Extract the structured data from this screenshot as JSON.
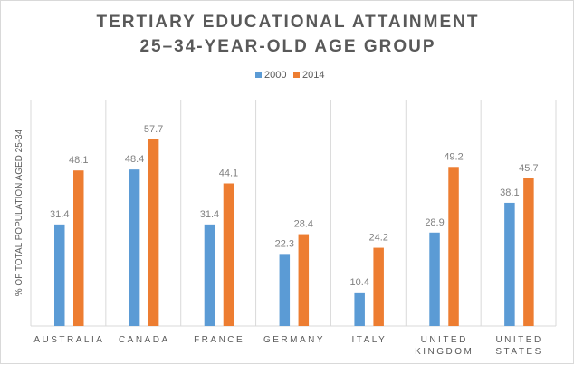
{
  "chart_data": {
    "type": "bar",
    "title": [
      "TERTIARY EDUCATIONAL ATTAINMENT",
      "25–34-YEAR-OLD AGE GROUP"
    ],
    "xlabel": "",
    "ylabel": "% OF TOTAL POPULATION AGED 25-34",
    "ylim": [
      0,
      70
    ],
    "legend_position": "top",
    "grid": "vertical category separators",
    "categories": [
      [
        "AUSTRALIA"
      ],
      [
        "CANADA"
      ],
      [
        "FRANCE"
      ],
      [
        "GERMANY"
      ],
      [
        "ITALY"
      ],
      [
        "UNITED",
        "KINGDOM"
      ],
      [
        "UNITED",
        "STATES"
      ]
    ],
    "series": [
      {
        "name": "2000",
        "color": "#5b9bd5",
        "values": [
          31.4,
          48.4,
          31.4,
          22.3,
          10.4,
          28.9,
          38.1
        ]
      },
      {
        "name": "2014",
        "color": "#ed7d31",
        "values": [
          48.1,
          57.7,
          44.1,
          28.4,
          24.2,
          49.2,
          45.7
        ]
      }
    ]
  }
}
